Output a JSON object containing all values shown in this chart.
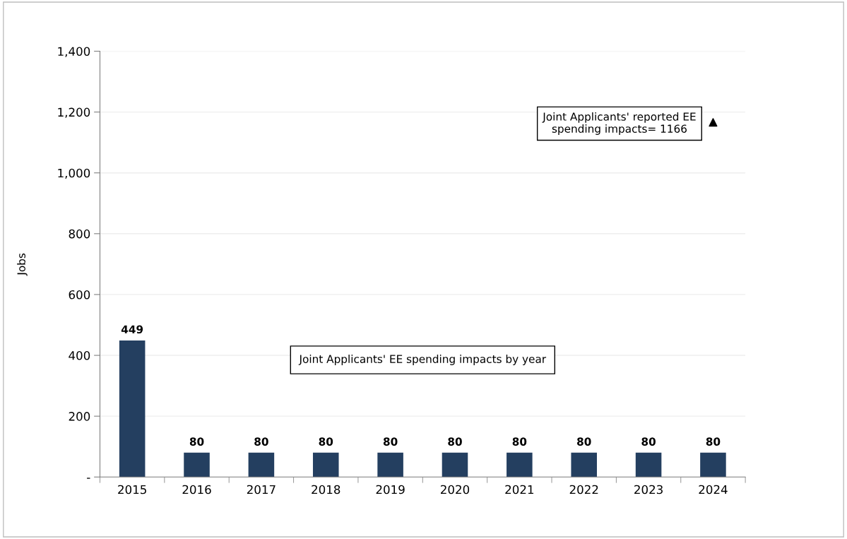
{
  "chart_data": {
    "type": "bar",
    "ylabel": "Jobs",
    "categories": [
      "2015",
      "2016",
      "2017",
      "2018",
      "2019",
      "2020",
      "2021",
      "2022",
      "2023",
      "2024"
    ],
    "series": [
      {
        "color": "#243f60",
        "values": [
          449,
          80,
          80,
          80,
          80,
          80,
          80,
          80,
          80,
          80
        ],
        "value_labels": [
          "449",
          "80",
          "80",
          "80",
          "80",
          "80",
          "80",
          "80",
          "80",
          "80"
        ]
      },
      {
        "type": "scatter",
        "values": [
          null,
          null,
          null,
          null,
          null,
          null,
          null,
          null,
          null,
          1166
        ],
        "color": "#000000",
        "marker": "triangle"
      }
    ],
    "ylim": [
      0,
      1400
    ],
    "yticks": [
      {
        "value": 0,
        "label": "-"
      },
      {
        "value": 200,
        "label": "200"
      },
      {
        "value": 400,
        "label": "400"
      },
      {
        "value": 600,
        "label": "600"
      },
      {
        "value": 800,
        "label": "800"
      },
      {
        "value": 1000,
        "label": "1,000"
      },
      {
        "value": 1200,
        "label": "1,200"
      },
      {
        "value": 1400,
        "label": "1,400"
      }
    ],
    "grid": "y",
    "annotations": [
      "Joint Applicants' reported EE\nspending impacts= 1166",
      "Joint Applicants' EE spending impacts by year"
    ]
  }
}
